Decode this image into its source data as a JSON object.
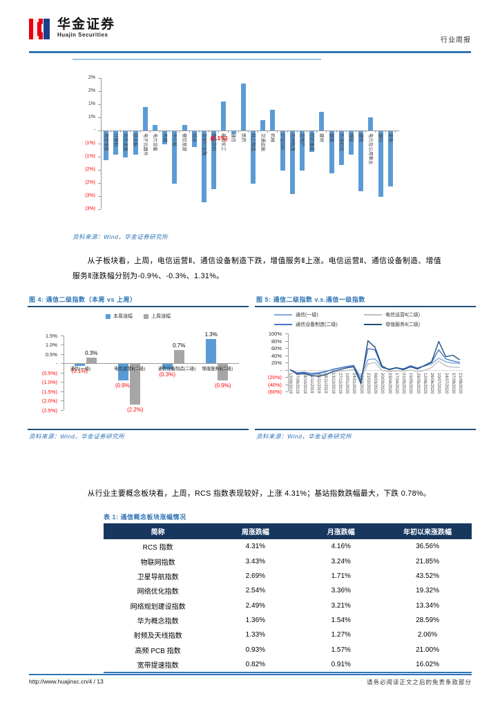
{
  "header": {
    "brand_cn": "华金证券",
    "brand_en": "Huajin Securities",
    "report_type": "行业周报"
  },
  "colors": {
    "accent_blue": "#2e74b5",
    "caption_rule": "#1f4e79",
    "bar_blue": "#5b9bd5",
    "bar_gray": "#a6a6a6",
    "negative_red": "#ff0000",
    "table_header_bg": "#17375e",
    "light_rule": "#9dc3e6"
  },
  "source_note": "资料来源：Wind，华金证券研究所",
  "paragraph1": "从子板块看，上周，电信运营Ⅱ、通信设备制造下跌，增值服务Ⅱ上涨。电信运营Ⅱ、通信设备制造、增值服务Ⅱ涨跌幅分别为-0.9%、-0.3%、1.31%。",
  "paragraph2": "从行业主要概念板块看，上周，RCS 指数表现较好，上涨 4.31%；基站指数跌幅最大，下跌 0.78%。",
  "chart_data": [
    {
      "id": "industry-weekly-change",
      "type": "bar",
      "title": "",
      "categories": [
        "商贸零售",
        "计算机",
        "有色金属",
        "创业板",
        "电子元器件",
        "电力设备",
        "传媒",
        "中小板",
        "餐饮旅游",
        "综合",
        "非银行金融",
        "食品饮料",
        "基础化工",
        "通信",
        "医药",
        "轻工制造",
        "交通运输",
        "机械",
        "沪深300",
        "农林牧渔",
        "房地产",
        "纺织服装",
        "建材",
        "钢铁",
        "石油石化",
        "煤炭",
        "建筑",
        "电力及公用事业",
        "银行",
        "家电"
      ],
      "values": [
        -1.1,
        -0.9,
        -1.0,
        -0.9,
        0.9,
        0.2,
        -0.5,
        -2.0,
        0.2,
        -0.6,
        -2.7,
        -2.2,
        1.1,
        -0.1,
        1.8,
        -2.0,
        0.4,
        0.8,
        -1.5,
        -2.4,
        -1.5,
        -0.8,
        0.7,
        -1.6,
        -1.3,
        -0.9,
        -2.3,
        0.5,
        -2.5,
        -2.1
      ],
      "ylim": [
        -3.0,
        2.0
      ],
      "yticks": [
        {
          "label": "2%",
          "value": 2.0
        },
        {
          "label": "2%",
          "value": 1.5
        },
        {
          "label": "1%",
          "value": 1.0
        },
        {
          "label": "1%",
          "value": 0.5
        },
        {
          "label": "-",
          "value": 0.0
        },
        {
          "label": "(1%)",
          "value": -0.5
        },
        {
          "label": "(1%)",
          "value": -1.0
        },
        {
          "label": "(2%)",
          "value": -1.5
        },
        {
          "label": "(2%)",
          "value": -2.0
        },
        {
          "label": "(3%)",
          "value": -2.5
        },
        {
          "label": "(3%)",
          "value": -3.0
        }
      ],
      "annotation": {
        "text": "(0.1%)",
        "category": "通信"
      },
      "bar_color": "#5b9bd5",
      "grid": false
    },
    {
      "id": "fig4",
      "type": "bar",
      "title": "图 4: 通信二级指数（本周 vs 上周）",
      "categories": [
        "通信(一级)",
        "电信运营Ⅱ(二级)",
        "通信设备制造(二级)",
        "增值服务Ⅱ(二级)"
      ],
      "series": [
        {
          "name": "本周涨幅",
          "color": "#5b9bd5",
          "values": [
            -0.1,
            -0.9,
            -0.3,
            1.3
          ],
          "labels": [
            "(0.1%)",
            "(0.9%)",
            "(0.3%)",
            "1.3%"
          ]
        },
        {
          "name": "上周涨幅",
          "color": "#a6a6a6",
          "values": [
            0.3,
            -2.2,
            0.7,
            -0.9
          ],
          "labels": [
            "0.3%",
            "(2.2%)",
            "0.7%",
            "(0.9%)"
          ]
        }
      ],
      "ylim": [
        -2.5,
        1.5
      ],
      "yticks": [
        {
          "label": "1.5%",
          "value": 1.5
        },
        {
          "label": "1.0%",
          "value": 1.0
        },
        {
          "label": "0.5%",
          "value": 0.5
        },
        {
          "label": "-",
          "value": 0.0
        },
        {
          "label": "(0.5%)",
          "value": -0.5
        },
        {
          "label": "(1.0%)",
          "value": -1.0
        },
        {
          "label": "(1.5%)",
          "value": -1.5
        },
        {
          "label": "(2.0%)",
          "value": -2.0
        },
        {
          "label": "(2.5%)",
          "value": -2.5
        }
      ],
      "legend_position": "top",
      "grid": false,
      "source": "资料来源：Wind，华金证券研究所"
    },
    {
      "id": "fig5",
      "type": "line",
      "title": "图 5: 通信二级指数 v.s.通信一级指数",
      "x": [
        "12/09/2019",
        "27/09/2019",
        "18/10/2019",
        "01/11/2019",
        "15/11/2019",
        "29/11/2019",
        "13/12/2019",
        "27/12/2019",
        "10/01/2020",
        "24/01/2020",
        "07/02/2020",
        "21/02/2020",
        "06/03/2020",
        "20/03/2020",
        "03/04/2020",
        "17/04/2020",
        "01/05/2020",
        "15/05/2020",
        "29/05/2020",
        "12/06/2020",
        "26/06/2020",
        "10/07/2020",
        "24/07/2020",
        "07/08/2020",
        "21/08/2020"
      ],
      "series": [
        {
          "name": "通信(一级)",
          "color": "#7fa8d8",
          "values": [
            0,
            -8,
            -6,
            -10,
            -8,
            -4,
            0,
            4,
            8,
            10,
            -20,
            28,
            30,
            6,
            2,
            5,
            3,
            9,
            5,
            10,
            16,
            32,
            22,
            18,
            17
          ]
        },
        {
          "name": "电信运营Ⅱ(二级)",
          "color": "#bfbfbf",
          "values": [
            0,
            -10,
            -9,
            -13,
            -14,
            -12,
            -8,
            -4,
            -2,
            1,
            -25,
            16,
            20,
            -2,
            -5,
            -3,
            -4,
            -1,
            -5,
            -2,
            6,
            24,
            10,
            7,
            6
          ]
        },
        {
          "name": "通信设备制造(二级)",
          "color": "#4472c4",
          "values": [
            0,
            -9,
            -8,
            -12,
            -10,
            -6,
            1,
            5,
            9,
            12,
            -30,
            58,
            55,
            6,
            1,
            6,
            2,
            11,
            5,
            11,
            20,
            55,
            30,
            24,
            20
          ]
        },
        {
          "name": "增值服务Ⅱ(二级)",
          "color": "#1f4e79",
          "values": [
            0,
            -12,
            -11,
            -16,
            -18,
            -14,
            -5,
            0,
            5,
            8,
            -38,
            80,
            62,
            10,
            0,
            5,
            0,
            8,
            2,
            12,
            22,
            78,
            36,
            40,
            27
          ]
        }
      ],
      "ylim": [
        -60,
        100
      ],
      "yticks": [
        {
          "label": "100%",
          "value": 100
        },
        {
          "label": "80%",
          "value": 80
        },
        {
          "label": "60%",
          "value": 60
        },
        {
          "label": "40%",
          "value": 40
        },
        {
          "label": "20%",
          "value": 20
        },
        {
          "label": "-",
          "value": 0
        },
        {
          "label": "(20%)",
          "value": -20
        },
        {
          "label": "(40%)",
          "value": -40
        },
        {
          "label": "(60%)",
          "value": -60
        }
      ],
      "legend_position": "top",
      "grid": false,
      "source": "资料来源：Wind，华金证券研究所"
    }
  ],
  "figure4": {
    "caption": "图 4: 通信二级指数（本周 vs 上周）"
  },
  "figure5": {
    "caption": "图 5: 通信二级指数 v.s.通信一级指数"
  },
  "table1": {
    "caption": "表 1: 通信概念板块涨幅情况",
    "headers": [
      "简称",
      "周涨跌幅",
      "月涨跌幅",
      "年初以来涨跌幅"
    ],
    "col_widths": [
      "29.5%",
      "23.5%",
      "23%",
      "24%"
    ],
    "rows": [
      [
        "RCS 指数",
        "4.31%",
        "4.16%",
        "36.56%"
      ],
      [
        "物联网指数",
        "3.43%",
        "3.24%",
        "21.85%"
      ],
      [
        "卫星导航指数",
        "2.69%",
        "1.71%",
        "43.52%"
      ],
      [
        "网络优化指数",
        "2.54%",
        "3.36%",
        "19.32%"
      ],
      [
        "网络规划建设指数",
        "2.49%",
        "3.21%",
        "13.34%"
      ],
      [
        "华为概念指数",
        "1.36%",
        "1.54%",
        "28.59%"
      ],
      [
        "射频及天线指数",
        "1.33%",
        "1.27%",
        "2.06%"
      ],
      [
        "高频 PCB 指数",
        "0.93%",
        "1.57%",
        "21.00%"
      ],
      [
        "宽带提速指数",
        "0.82%",
        "0.91%",
        "16.02%"
      ]
    ]
  },
  "footer": {
    "left": "http://www.huajinsc.cn/4  /  13",
    "right": "请务必阅读正文之后的免责条款部分"
  }
}
